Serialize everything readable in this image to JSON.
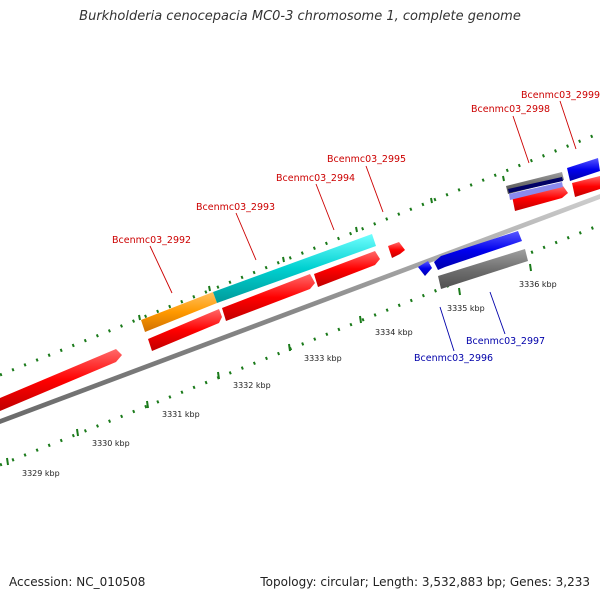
{
  "title": "Burkholderia cenocepacia MC0-3 chromosome 1, complete genome",
  "footer": {
    "accession": "Accession: NC_010508",
    "summary": "Topology: circular; Length: 3,532,883 bp; Genes: 3,233"
  },
  "ticks": [
    {
      "label": "3329 kbp"
    },
    {
      "label": "3330 kbp"
    },
    {
      "label": "3331 kbp"
    },
    {
      "label": "3332 kbp"
    },
    {
      "label": "3333 kbp"
    },
    {
      "label": "3334 kbp"
    },
    {
      "label": "3335 kbp"
    },
    {
      "label": "3336 kbp"
    }
  ],
  "genes": [
    {
      "label": "Bcenmc03_2992",
      "strand": "forward",
      "color": "#cc0000"
    },
    {
      "label": "Bcenmc03_2993",
      "strand": "forward",
      "color": "#cc0000"
    },
    {
      "label": "Bcenmc03_2994",
      "strand": "forward",
      "color": "#cc0000"
    },
    {
      "label": "Bcenmc03_2995",
      "strand": "forward",
      "color": "#cc0000"
    },
    {
      "label": "Bcenmc03_2996",
      "strand": "reverse",
      "color": "#0000aa"
    },
    {
      "label": "Bcenmc03_2997",
      "strand": "reverse",
      "color": "#0000aa"
    },
    {
      "label": "Bcenmc03_2998",
      "strand": "forward",
      "color": "#cc0000"
    },
    {
      "label": "Bcenmc03_2999",
      "strand": "forward",
      "color": "#cc0000"
    }
  ],
  "colors": {
    "forward_gene": "#ff0000",
    "reverse_gene": "#0000ee",
    "backbone": "#888888",
    "tick": "#1a7a1a",
    "cog_orange": "#ff9900",
    "cog_cyan": "#00cccc",
    "cog_grey": "#707070",
    "cog_navy": "#000066"
  }
}
